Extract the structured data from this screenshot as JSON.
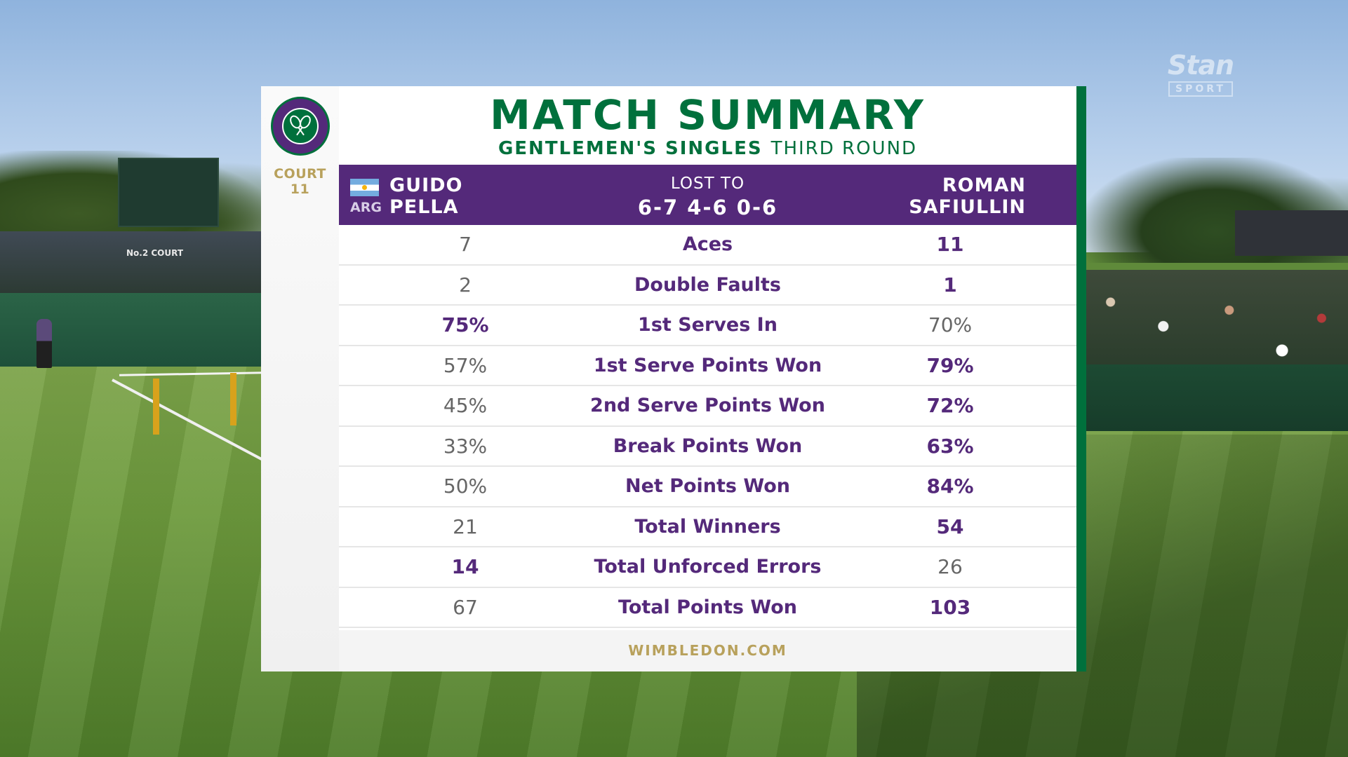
{
  "broadcaster": {
    "name": "Stan",
    "sub": "SPORT"
  },
  "background": {
    "court_sign": "No.2 COURT"
  },
  "court": {
    "label": "COURT",
    "number": "11"
  },
  "logo": {
    "name": "Wimbledon The Championships"
  },
  "title": "MATCH SUMMARY",
  "subtitle": {
    "event": "GENTLEMEN'S SINGLES",
    "round": "THIRD ROUND"
  },
  "player1": {
    "first": "GUIDO",
    "last": "PELLA",
    "country": "ARG",
    "flag": "argentina-flag-icon"
  },
  "result": {
    "label": "LOST TO",
    "score": "6-7 4-6 0-6"
  },
  "player2": {
    "first": "ROMAN",
    "last": "SAFIULLIN"
  },
  "stats": [
    {
      "label": "Aces",
      "p1": "7",
      "p2": "11",
      "leader": "p2"
    },
    {
      "label": "Double Faults",
      "p1": "2",
      "p2": "1",
      "leader": "p2"
    },
    {
      "label": "1st Serves In",
      "p1": "75%",
      "p2": "70%",
      "leader": "p1"
    },
    {
      "label": "1st Serve Points Won",
      "p1": "57%",
      "p2": "79%",
      "leader": "p2"
    },
    {
      "label": "2nd Serve Points Won",
      "p1": "45%",
      "p2": "72%",
      "leader": "p2"
    },
    {
      "label": "Break Points Won",
      "p1": "33%",
      "p2": "63%",
      "leader": "p2"
    },
    {
      "label": "Net Points Won",
      "p1": "50%",
      "p2": "84%",
      "leader": "p2"
    },
    {
      "label": "Total Winners",
      "p1": "21",
      "p2": "54",
      "leader": "p2"
    },
    {
      "label": "Total Unforced Errors",
      "p1": "14",
      "p2": "26",
      "leader": "p1"
    },
    {
      "label": "Total Points Won",
      "p1": "67",
      "p2": "103",
      "leader": "p2"
    }
  ],
  "footer": "WIMBLEDON.COM",
  "colors": {
    "purple": "#54297a",
    "green": "#00703c",
    "gold": "#b8a15c"
  }
}
